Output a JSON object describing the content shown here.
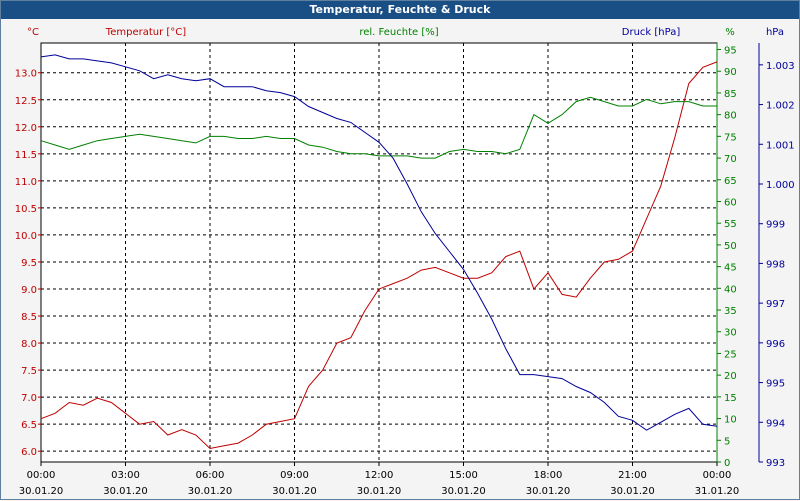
{
  "window": {
    "title": "Temperatur, Feuchte & Druck"
  },
  "chart_data": {
    "type": "line",
    "title": "Temperatur, Feuchte & Druck",
    "grid": true,
    "x": {
      "range": [
        "00:00",
        "24:00"
      ],
      "tick_labels": [
        {
          "time": "00:00",
          "date": "30.01.20"
        },
        {
          "time": "03:00",
          "date": "30.01.20"
        },
        {
          "time": "06:00",
          "date": "30.01.20"
        },
        {
          "time": "09:00",
          "date": "30.01.20"
        },
        {
          "time": "12:00",
          "date": "30.01.20"
        },
        {
          "time": "15:00",
          "date": "30.01.20"
        },
        {
          "time": "18:00",
          "date": "30.01.20"
        },
        {
          "time": "21:00",
          "date": "30.01.20"
        },
        {
          "time": "00:00",
          "date": "31.01.20"
        }
      ]
    },
    "axes": {
      "temperature": {
        "label": "Temperatur [°C]",
        "unit": "°C",
        "min": 5.8,
        "max": 13.55,
        "ticks": [
          6.0,
          6.5,
          7.0,
          7.5,
          8.0,
          8.5,
          9.0,
          9.5,
          10.0,
          10.5,
          11.0,
          11.5,
          12.0,
          12.5,
          13.0
        ],
        "color": "#c00000",
        "side": "left"
      },
      "humidity": {
        "label": "rel. Feuchte [%]",
        "unit": "%",
        "min": 0,
        "max": 96.5,
        "ticks": [
          0,
          5,
          10,
          15,
          20,
          25,
          30,
          35,
          40,
          45,
          50,
          55,
          60,
          65,
          70,
          75,
          80,
          85,
          90,
          95
        ],
        "color": "#008000",
        "side": "right"
      },
      "pressure": {
        "label": "Druck [hPa]",
        "unit": "hPa",
        "min": 993.0,
        "max": 1003.55,
        "ticks": [
          993,
          994,
          995,
          996,
          997,
          998,
          999,
          1000,
          1001,
          1002,
          1003
        ],
        "tick_labels": [
          "993",
          "994",
          "995",
          "996",
          "997",
          "998",
          "999",
          "1.000",
          "1.001",
          "1.002",
          "1.003"
        ],
        "color": "#000099",
        "side": "right"
      }
    },
    "series": [
      {
        "name": "Temperatur [°C]",
        "axis": "temperature",
        "color": "#c00000",
        "x_hours": [
          0,
          0.5,
          1,
          1.5,
          2,
          2.5,
          3,
          3.5,
          4,
          4.5,
          5,
          5.5,
          6,
          6.5,
          7,
          7.5,
          8,
          8.5,
          9,
          9.5,
          10,
          10.5,
          11,
          11.5,
          12,
          12.5,
          13,
          13.5,
          14,
          14.5,
          15,
          15.5,
          16,
          16.5,
          17,
          17.5,
          18,
          18.5,
          19,
          19.5,
          20,
          20.5,
          21,
          21.5,
          22,
          22.5,
          23,
          23.5,
          24
        ],
        "values": [
          6.6,
          6.7,
          6.9,
          6.85,
          6.98,
          6.9,
          6.7,
          6.5,
          6.55,
          6.3,
          6.4,
          6.3,
          6.05,
          6.1,
          6.15,
          6.3,
          6.5,
          6.55,
          6.6,
          7.2,
          7.5,
          8.0,
          8.1,
          8.6,
          9.0,
          9.1,
          9.2,
          9.35,
          9.4,
          9.3,
          9.2,
          9.2,
          9.3,
          9.6,
          9.7,
          9.0,
          9.3,
          8.9,
          8.85,
          9.2,
          9.5,
          9.55,
          9.7,
          10.3,
          10.9,
          11.8,
          12.8,
          13.1,
          13.2
        ]
      },
      {
        "name": "rel. Feuchte [%]",
        "axis": "humidity",
        "color": "#008000",
        "x_hours": [
          0,
          0.5,
          1,
          1.5,
          2,
          2.5,
          3,
          3.5,
          4,
          4.5,
          5,
          5.5,
          6,
          6.5,
          7,
          7.5,
          8,
          8.5,
          9,
          9.5,
          10,
          10.5,
          11,
          11.5,
          12,
          12.5,
          13,
          13.5,
          14,
          14.5,
          15,
          15.5,
          16,
          16.5,
          17,
          17.5,
          18,
          18.5,
          19,
          19.5,
          20,
          20.5,
          21,
          21.5,
          22,
          22.5,
          23,
          23.5,
          24
        ],
        "values": [
          74,
          73,
          72,
          73,
          74,
          74.5,
          75,
          75.5,
          75,
          74.5,
          74,
          73.5,
          75,
          75,
          74.5,
          74.5,
          75,
          74.5,
          74.5,
          73,
          72.5,
          71.5,
          71,
          71,
          70.5,
          70.5,
          70.5,
          70,
          70,
          71.5,
          72,
          71.5,
          71.5,
          71,
          72,
          80,
          78,
          80,
          83,
          84,
          83,
          82,
          82,
          83.5,
          82.5,
          83,
          83,
          82,
          82
        ]
      },
      {
        "name": "Druck [hPa]",
        "axis": "pressure",
        "color": "#000099",
        "x_hours": [
          0,
          0.5,
          1,
          1.5,
          2,
          2.5,
          3,
          3.5,
          4,
          4.5,
          5,
          5.5,
          6,
          6.5,
          7,
          7.5,
          8,
          8.5,
          9,
          9.5,
          10,
          10.5,
          11,
          11.5,
          12,
          12.5,
          13,
          13.5,
          14,
          14.5,
          15,
          15.5,
          16,
          16.5,
          17,
          17.5,
          18,
          18.5,
          19,
          19.5,
          20,
          20.5,
          21,
          21.5,
          22,
          22.5,
          23,
          23.5,
          24
        ],
        "values": [
          1003.2,
          1003.25,
          1003.15,
          1003.15,
          1003.1,
          1003.05,
          1002.95,
          1002.85,
          1002.65,
          1002.75,
          1002.65,
          1002.6,
          1002.65,
          1002.45,
          1002.45,
          1002.45,
          1002.35,
          1002.3,
          1002.2,
          1001.95,
          1001.8,
          1001.65,
          1001.55,
          1001.3,
          1001.05,
          1000.65,
          1000.0,
          999.3,
          998.75,
          998.3,
          997.85,
          997.25,
          996.6,
          995.85,
          995.2,
          995.2,
          995.15,
          995.1,
          994.9,
          994.75,
          994.5,
          994.15,
          994.05,
          993.8,
          994.0,
          994.2,
          994.35,
          993.95,
          993.9
        ]
      }
    ]
  }
}
